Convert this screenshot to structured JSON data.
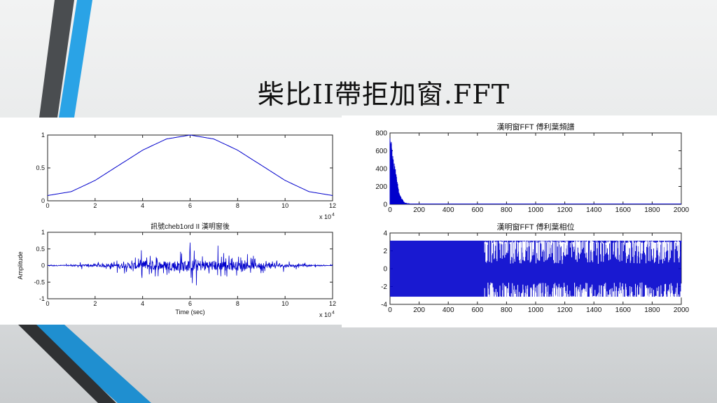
{
  "slide": {
    "title": "柴比II帶拒加窗.FFT",
    "colors": {
      "accent_blue": "#2aa3e6",
      "accent_dark": "#4a4d50",
      "line": "#0000cc"
    }
  },
  "chart_data": [
    {
      "id": "window",
      "type": "line",
      "title": "",
      "xlabel": "",
      "ylabel": "",
      "xlim": [
        0,
        12
      ],
      "ylim": [
        0,
        1
      ],
      "x_multiplier_label": "x 10",
      "x_multiplier_exp": "4",
      "xticks": [
        "0",
        "2",
        "4",
        "6",
        "8",
        "10",
        "12"
      ],
      "yticks": [
        "0",
        "0.5",
        "1"
      ],
      "series": [
        {
          "x": [
            0,
            1,
            2,
            3,
            4,
            5,
            6,
            7,
            8,
            9,
            10,
            11,
            12
          ],
          "y": [
            0.08,
            0.14,
            0.31,
            0.54,
            0.77,
            0.94,
            1.0,
            0.94,
            0.77,
            0.54,
            0.31,
            0.14,
            0.08
          ]
        }
      ]
    },
    {
      "id": "signal",
      "type": "line",
      "title": "訊號cheb1ord II 漢明窗後",
      "xlabel": "Time (sec)",
      "ylabel": "Amplitude",
      "xlim": [
        0,
        12
      ],
      "ylim": [
        -1,
        1
      ],
      "x_multiplier_label": "x 10",
      "x_multiplier_exp": "4",
      "xticks": [
        "0",
        "2",
        "4",
        "6",
        "8",
        "10",
        "12"
      ],
      "yticks": [
        "-1",
        "-0.5",
        "0",
        "0.5",
        "1"
      ],
      "envelope": {
        "x": [
          0,
          1,
          2,
          3,
          4,
          5,
          6,
          7,
          8,
          9,
          10,
          11,
          12
        ],
        "amp": [
          0.04,
          0.08,
          0.16,
          0.3,
          0.5,
          0.65,
          0.75,
          0.7,
          0.55,
          0.35,
          0.18,
          0.08,
          0.04
        ]
      }
    },
    {
      "id": "magnitude",
      "type": "bar",
      "title": "漢明窗FFT 傅利葉頻譜",
      "xlabel": "",
      "ylabel": "",
      "xlim": [
        0,
        2000
      ],
      "ylim": [
        0,
        800
      ],
      "xticks": [
        "0",
        "200",
        "400",
        "600",
        "800",
        "1000",
        "1200",
        "1400",
        "1600",
        "1800",
        "2000"
      ],
      "yticks": [
        "0",
        "200",
        "400",
        "600",
        "800"
      ],
      "profile": {
        "x": [
          0,
          10,
          20,
          30,
          40,
          50,
          60,
          80,
          100,
          150,
          200,
          2000
        ],
        "y": [
          780,
          720,
          600,
          500,
          380,
          260,
          170,
          70,
          20,
          4,
          1,
          0
        ]
      }
    },
    {
      "id": "phase",
      "type": "line",
      "title": "漢明窗FFT 傅利葉相位",
      "xlabel": "",
      "ylabel": "",
      "xlim": [
        0,
        2000
      ],
      "ylim": [
        -4,
        4
      ],
      "xticks": [
        "0",
        "200",
        "400",
        "600",
        "800",
        "1000",
        "1200",
        "1400",
        "1600",
        "1800",
        "2000"
      ],
      "yticks": [
        "-4",
        "-2",
        "0",
        "2",
        "4"
      ],
      "range": [
        -3.14,
        3.14
      ],
      "transition_x": 650
    }
  ]
}
